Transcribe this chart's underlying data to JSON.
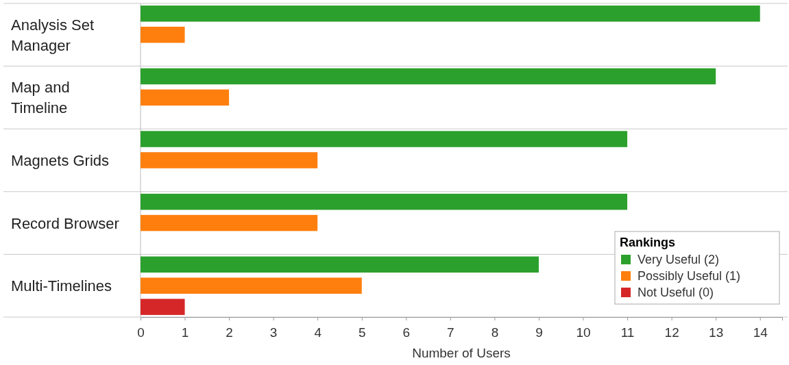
{
  "chart_data": {
    "type": "bar",
    "orientation": "horizontal",
    "xlabel": "Number of Users",
    "legend_title": "Rankings",
    "legend": "bottom right",
    "categories": [
      "Analysis Set Manager",
      "Map and Timeline",
      "Magnets Grids",
      "Record Browser",
      "Multi-Timelines"
    ],
    "series": [
      {
        "name": "Very Useful (2)",
        "color": "#2ca02c",
        "values": [
          14,
          13,
          11,
          11,
          9
        ]
      },
      {
        "name": "Possibly Useful (1)",
        "color": "#ff7f0e",
        "values": [
          1,
          2,
          4,
          4,
          5
        ]
      },
      {
        "name": "Not Useful (0)",
        "color": "#d62728",
        "values": [
          null,
          null,
          null,
          null,
          1
        ]
      }
    ],
    "xlim": [
      0,
      14.5
    ],
    "xticks": [
      0,
      1,
      2,
      3,
      4,
      5,
      6,
      7,
      8,
      9,
      10,
      11,
      12,
      13,
      14
    ]
  }
}
